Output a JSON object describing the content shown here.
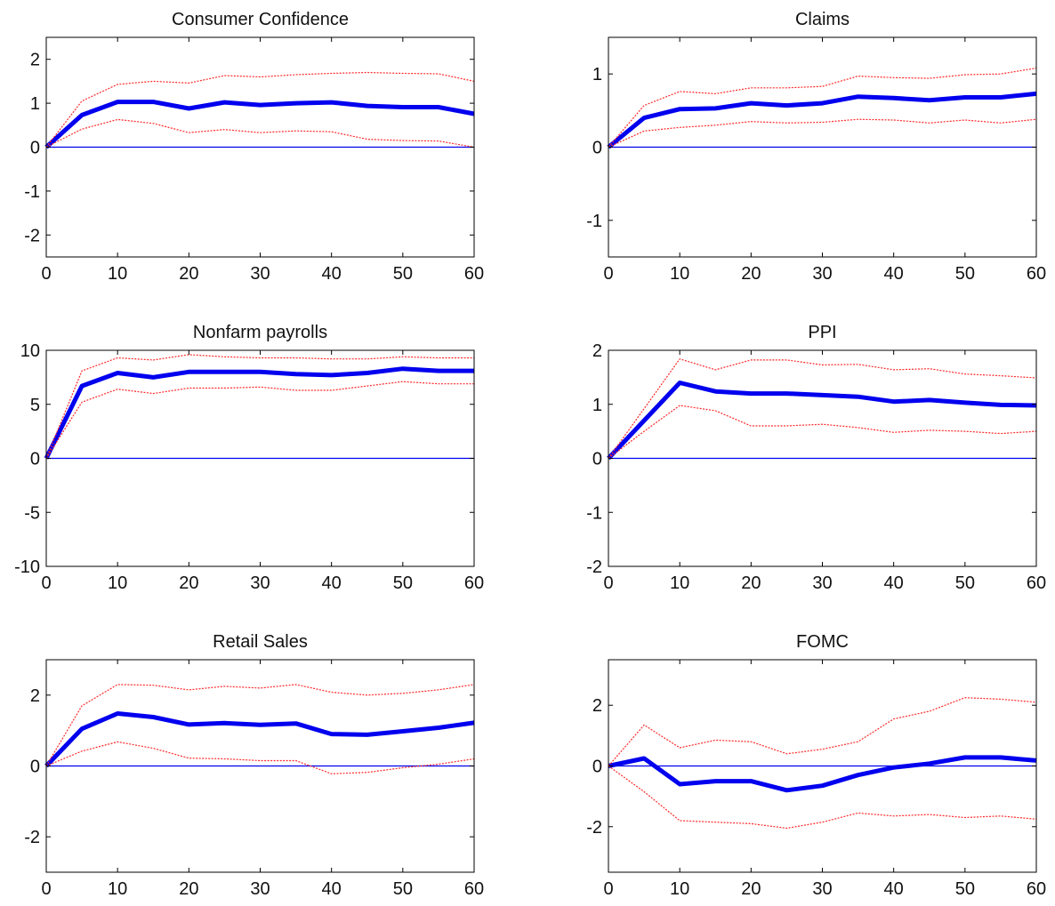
{
  "colors": {
    "estimate": "#0000ee",
    "bands": "#ff2a2a",
    "zero_line": "#0000ee",
    "axes": "#000000"
  },
  "chart_data": [
    {
      "type": "line",
      "title": "Consumer Confidence",
      "x": [
        0,
        5,
        10,
        15,
        20,
        25,
        30,
        35,
        40,
        45,
        50,
        55,
        60
      ],
      "xlim": [
        0,
        60
      ],
      "xticks": [
        0,
        10,
        20,
        30,
        40,
        50,
        60
      ],
      "ylim": [
        -2.5,
        2.5
      ],
      "yticks": [
        -2,
        -1,
        0,
        1,
        2
      ],
      "ytick_labels": [
        "-2",
        "-1",
        "0",
        "1",
        "2"
      ],
      "series": [
        {
          "role": "estimate",
          "values": [
            0,
            0.73,
            1.03,
            1.03,
            0.88,
            1.02,
            0.96,
            1.0,
            1.02,
            0.94,
            0.91,
            0.91,
            0.76
          ]
        },
        {
          "role": "upper",
          "values": [
            0,
            1.05,
            1.43,
            1.5,
            1.46,
            1.63,
            1.6,
            1.65,
            1.68,
            1.7,
            1.68,
            1.67,
            1.5
          ]
        },
        {
          "role": "lower",
          "values": [
            0,
            0.41,
            0.63,
            0.54,
            0.33,
            0.4,
            0.33,
            0.37,
            0.35,
            0.18,
            0.15,
            0.14,
            0.0
          ]
        }
      ]
    },
    {
      "type": "line",
      "title": "Claims",
      "x": [
        0,
        5,
        10,
        15,
        20,
        25,
        30,
        35,
        40,
        45,
        50,
        55,
        60
      ],
      "xlim": [
        0,
        60
      ],
      "xticks": [
        0,
        10,
        20,
        30,
        40,
        50,
        60
      ],
      "ylim": [
        -1.5,
        1.5
      ],
      "yticks": [
        -1,
        0,
        1
      ],
      "ytick_labels": [
        "-1",
        "0",
        "1"
      ],
      "series": [
        {
          "role": "estimate",
          "values": [
            0,
            0.4,
            0.52,
            0.53,
            0.6,
            0.57,
            0.6,
            0.69,
            0.67,
            0.64,
            0.68,
            0.68,
            0.73
          ]
        },
        {
          "role": "upper",
          "values": [
            0,
            0.57,
            0.76,
            0.73,
            0.81,
            0.81,
            0.83,
            0.97,
            0.95,
            0.94,
            0.99,
            1.0,
            1.08
          ]
        },
        {
          "role": "lower",
          "values": [
            0,
            0.22,
            0.27,
            0.3,
            0.35,
            0.33,
            0.34,
            0.38,
            0.37,
            0.33,
            0.37,
            0.33,
            0.38
          ]
        }
      ]
    },
    {
      "type": "line",
      "title": "Nonfarm payrolls",
      "x": [
        0,
        5,
        10,
        15,
        20,
        25,
        30,
        35,
        40,
        45,
        50,
        55,
        60
      ],
      "xlim": [
        0,
        60
      ],
      "xticks": [
        0,
        10,
        20,
        30,
        40,
        50,
        60
      ],
      "ylim": [
        -10,
        10
      ],
      "yticks": [
        -10,
        -5,
        0,
        5,
        10
      ],
      "ytick_labels": [
        "-10",
        "-5",
        "0",
        "5",
        "10"
      ],
      "series": [
        {
          "role": "estimate",
          "values": [
            0,
            6.7,
            7.9,
            7.5,
            8.0,
            8.0,
            8.0,
            7.8,
            7.7,
            7.9,
            8.3,
            8.1,
            8.1
          ]
        },
        {
          "role": "upper",
          "values": [
            0,
            8.1,
            9.3,
            9.1,
            9.6,
            9.4,
            9.3,
            9.3,
            9.2,
            9.2,
            9.4,
            9.3,
            9.3
          ]
        },
        {
          "role": "lower",
          "values": [
            0,
            5.2,
            6.4,
            6.0,
            6.5,
            6.5,
            6.6,
            6.3,
            6.3,
            6.7,
            7.1,
            6.9,
            6.9
          ]
        }
      ]
    },
    {
      "type": "line",
      "title": "PPI",
      "x": [
        0,
        5,
        10,
        15,
        20,
        25,
        30,
        35,
        40,
        45,
        50,
        55,
        60
      ],
      "xlim": [
        0,
        60
      ],
      "xticks": [
        0,
        10,
        20,
        30,
        40,
        50,
        60
      ],
      "ylim": [
        -2,
        2
      ],
      "yticks": [
        -2,
        -1,
        0,
        1,
        2
      ],
      "ytick_labels": [
        "-2",
        "-1",
        "0",
        "1",
        "2"
      ],
      "series": [
        {
          "role": "estimate",
          "values": [
            0,
            0.7,
            1.4,
            1.24,
            1.2,
            1.2,
            1.17,
            1.14,
            1.05,
            1.08,
            1.03,
            0.99,
            0.98
          ]
        },
        {
          "role": "upper",
          "values": [
            0,
            0.92,
            1.84,
            1.64,
            1.82,
            1.82,
            1.73,
            1.74,
            1.64,
            1.66,
            1.56,
            1.53,
            1.49
          ]
        },
        {
          "role": "lower",
          "values": [
            0,
            0.5,
            0.98,
            0.88,
            0.6,
            0.6,
            0.63,
            0.57,
            0.48,
            0.52,
            0.5,
            0.46,
            0.5
          ]
        }
      ]
    },
    {
      "type": "line",
      "title": "Retail Sales",
      "x": [
        0,
        5,
        10,
        15,
        20,
        25,
        30,
        35,
        40,
        45,
        50,
        55,
        60
      ],
      "xlim": [
        0,
        60
      ],
      "xticks": [
        0,
        10,
        20,
        30,
        40,
        50,
        60
      ],
      "ylim": [
        -3,
        3
      ],
      "yticks": [
        -2,
        0,
        2
      ],
      "ytick_labels": [
        "-2",
        "0",
        "2"
      ],
      "series": [
        {
          "role": "estimate",
          "values": [
            0,
            1.05,
            1.48,
            1.38,
            1.17,
            1.21,
            1.16,
            1.2,
            0.9,
            0.88,
            0.98,
            1.08,
            1.22
          ]
        },
        {
          "role": "upper",
          "values": [
            0,
            1.7,
            2.3,
            2.28,
            2.15,
            2.25,
            2.2,
            2.3,
            2.08,
            2.0,
            2.05,
            2.15,
            2.3
          ]
        },
        {
          "role": "lower",
          "values": [
            0,
            0.42,
            0.68,
            0.5,
            0.22,
            0.2,
            0.15,
            0.15,
            -0.22,
            -0.18,
            -0.05,
            0.05,
            0.2
          ]
        }
      ]
    },
    {
      "type": "line",
      "title": "FOMC",
      "x": [
        0,
        5,
        10,
        15,
        20,
        25,
        30,
        35,
        40,
        45,
        50,
        55,
        60
      ],
      "xlim": [
        0,
        60
      ],
      "xticks": [
        0,
        10,
        20,
        30,
        40,
        50,
        60
      ],
      "ylim": [
        -3.5,
        3.5
      ],
      "yticks": [
        -2,
        0,
        2
      ],
      "ytick_labels": [
        "-2",
        "0",
        "2"
      ],
      "series": [
        {
          "role": "estimate",
          "values": [
            0,
            0.25,
            -0.6,
            -0.5,
            -0.5,
            -0.8,
            -0.65,
            -0.3,
            -0.05,
            0.08,
            0.28,
            0.28,
            0.18
          ]
        },
        {
          "role": "upper",
          "values": [
            0,
            1.35,
            0.6,
            0.85,
            0.8,
            0.4,
            0.55,
            0.8,
            1.55,
            1.8,
            2.25,
            2.2,
            2.1
          ]
        },
        {
          "role": "lower",
          "values": [
            0,
            -0.85,
            -1.8,
            -1.85,
            -1.9,
            -2.05,
            -1.85,
            -1.55,
            -1.65,
            -1.6,
            -1.7,
            -1.65,
            -1.75
          ]
        }
      ]
    }
  ]
}
